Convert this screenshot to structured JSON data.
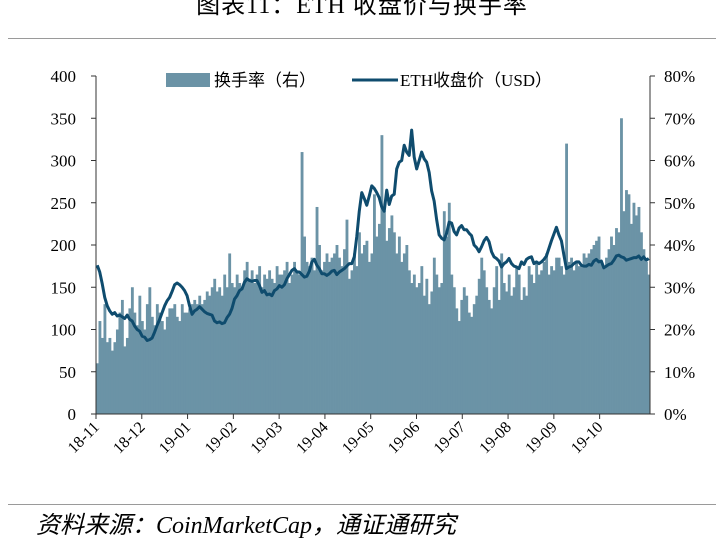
{
  "title": "图表11：ETH 收盘价与换手率",
  "source": "资料来源：CoinMarketCap，通证通研究",
  "chart_data": {
    "type": "bar+line",
    "title": "图表11：ETH 收盘价与换手率",
    "x_ticks": [
      "18-11",
      "18-12",
      "19-01",
      "19-02",
      "19-03",
      "19-04",
      "19-05",
      "19-06",
      "19-07",
      "19-08",
      "19-09",
      "19-10"
    ],
    "y_left": {
      "range": [
        0,
        400
      ],
      "ticks": [
        "0",
        "50",
        "100",
        "150",
        "200",
        "250",
        "300",
        "350",
        "400"
      ]
    },
    "y_right": {
      "range": [
        0,
        80
      ],
      "ticks": [
        "0%",
        "10%",
        "20%",
        "30%",
        "40%",
        "50%",
        "60%",
        "70%",
        "80%"
      ]
    },
    "legend": {
      "placement": "top",
      "entries": [
        "换手率（右）",
        "ETH收盘价（USD）"
      ]
    },
    "colors": {
      "bar": "#6b93a6",
      "line": "#0f4c6e"
    },
    "series": [
      {
        "name": "换手率（右）",
        "type": "bar",
        "axis": "right",
        "unit": "%",
        "values": [
          12,
          22,
          18,
          26,
          17,
          18,
          15,
          17,
          20,
          24,
          27,
          16,
          18,
          25,
          30,
          24,
          21,
          28,
          22,
          20,
          26,
          30,
          23,
          21,
          26,
          24,
          22,
          20,
          23,
          25,
          25,
          26,
          23,
          22,
          26,
          24,
          24,
          25,
          26,
          27,
          26,
          28,
          26,
          27,
          29,
          28,
          30,
          32,
          29,
          30,
          28,
          33,
          30,
          38,
          31,
          30,
          33,
          31,
          30,
          34,
          36,
          32,
          34,
          31,
          33,
          35,
          30,
          33,
          32,
          34,
          32,
          31,
          35,
          33,
          33,
          34,
          36,
          31,
          33,
          36,
          34,
          33,
          62,
          42,
          36,
          35,
          37,
          34,
          49,
          40,
          34,
          36,
          38,
          36,
          37,
          38,
          40,
          37,
          35,
          39,
          46,
          32,
          34,
          38,
          35,
          43,
          38,
          40,
          41,
          36,
          38,
          52,
          42,
          45,
          66,
          48,
          41,
          44,
          47,
          43,
          38,
          42,
          36,
          38,
          40,
          34,
          31,
          33,
          30,
          31,
          35,
          28,
          32,
          26,
          29,
          37,
          33,
          30,
          31,
          48,
          42,
          50,
          33,
          30,
          25,
          22,
          27,
          30,
          28,
          24,
          23,
          26,
          28,
          32,
          37,
          34,
          30,
          27,
          25,
          30,
          35,
          27,
          38,
          31,
          29,
          33,
          28,
          30,
          35,
          33,
          27,
          30,
          28,
          35,
          33,
          31,
          36,
          33,
          34,
          36,
          38,
          33,
          35,
          34,
          37,
          37,
          35,
          33,
          64,
          36,
          37,
          34,
          36,
          35,
          35,
          38,
          37,
          38,
          39,
          40,
          41,
          42,
          36,
          35,
          37,
          39,
          42,
          40,
          44,
          43,
          70,
          48,
          53,
          52,
          45,
          50,
          47,
          49,
          43,
          39,
          36,
          33
        ]
      },
      {
        "name": "ETH收盘价（USD）",
        "type": "line",
        "axis": "left",
        "unit": "USD",
        "values": [
          176,
          168,
          154,
          138,
          128,
          122,
          118,
          120,
          116,
          117,
          115,
          113,
          117,
          112,
          110,
          104,
          100,
          98,
          92,
          91,
          87,
          88,
          90,
          97,
          105,
          112,
          120,
          128,
          134,
          138,
          145,
          153,
          155,
          153,
          150,
          146,
          140,
          128,
          118,
          122,
          124,
          127,
          124,
          121,
          119,
          118,
          117,
          110,
          108,
          109,
          107,
          108,
          114,
          118,
          125,
          136,
          140,
          146,
          148,
          156,
          160,
          158,
          157,
          158,
          158,
          152,
          144,
          146,
          141,
          142,
          140,
          146,
          148,
          152,
          150,
          153,
          160,
          165,
          170,
          172,
          168,
          168,
          165,
          162,
          163,
          169,
          180,
          183,
          176,
          172,
          166,
          166,
          164,
          166,
          169,
          170,
          165,
          168,
          170,
          172,
          175,
          178,
          178,
          186,
          210,
          240,
          262,
          255,
          247,
          258,
          270,
          267,
          262,
          256,
          245,
          240,
          265,
          248,
          258,
          260,
          290,
          298,
          300,
          318,
          310,
          306,
          336,
          304,
          290,
          300,
          310,
          302,
          298,
          286,
          264,
          252,
          230,
          212,
          208,
          206,
          214,
          227,
          226,
          216,
          212,
          220,
          223,
          218,
          218,
          214,
          211,
          200,
          197,
          192,
          198,
          205,
          209,
          204,
          192,
          186,
          184,
          181,
          174,
          178,
          180,
          184,
          178,
          175,
          174,
          172,
          180,
          177,
          183,
          185,
          186,
          178,
          180,
          178,
          180,
          183,
          187,
          196,
          205,
          213,
          221,
          212,
          205,
          188,
          172,
          174,
          175,
          178,
          180,
          180,
          176,
          175,
          175,
          177,
          176,
          181,
          183,
          180,
          181,
          173,
          175,
          177,
          178,
          182,
          187,
          188,
          186,
          185,
          182,
          183,
          184,
          185,
          185,
          187,
          183,
          186,
          182,
          184
        ]
      }
    ]
  }
}
